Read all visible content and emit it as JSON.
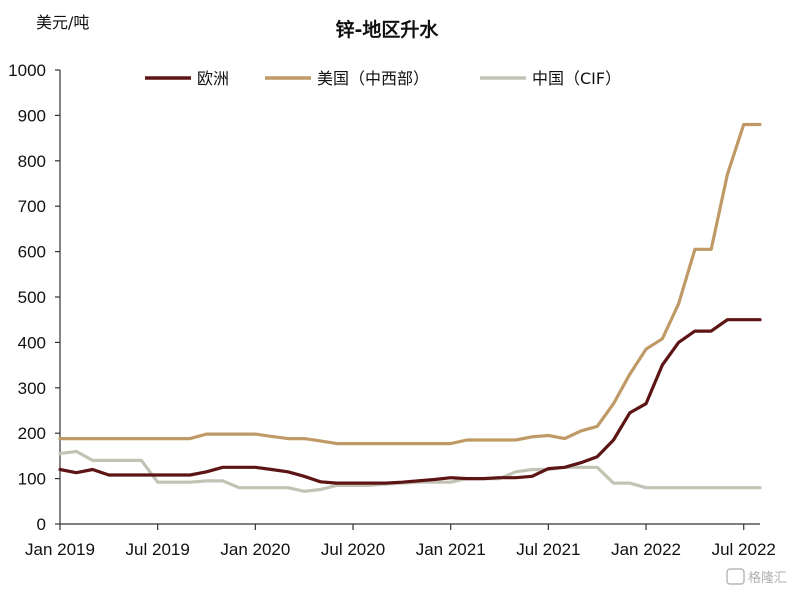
{
  "chart_data": {
    "type": "line",
    "title": "锌-地区升水",
    "ylabel": "美元/吨",
    "xlabel": "",
    "ylim": [
      0,
      1000
    ],
    "yticks": [
      0,
      100,
      200,
      300,
      400,
      500,
      600,
      700,
      800,
      900,
      1000
    ],
    "xlim": [
      "2019-01",
      "2022-08"
    ],
    "xtick_labels": [
      "Jan 2019",
      "Jul 2019",
      "Jan 2020",
      "Jul 2020",
      "Jan 2021",
      "Jul 2021",
      "Jan 2022",
      "Jul 2022"
    ],
    "legend_position": "top",
    "x": [
      "2019-01",
      "2019-02",
      "2019-03",
      "2019-04",
      "2019-05",
      "2019-06",
      "2019-07",
      "2019-08",
      "2019-09",
      "2019-10",
      "2019-11",
      "2019-12",
      "2020-01",
      "2020-02",
      "2020-03",
      "2020-04",
      "2020-05",
      "2020-06",
      "2020-07",
      "2020-08",
      "2020-09",
      "2020-10",
      "2020-11",
      "2020-12",
      "2021-01",
      "2021-02",
      "2021-03",
      "2021-04",
      "2021-05",
      "2021-06",
      "2021-07",
      "2021-08",
      "2021-09",
      "2021-10",
      "2021-11",
      "2021-12",
      "2022-01",
      "2022-02",
      "2022-03",
      "2022-04",
      "2022-05",
      "2022-06",
      "2022-07",
      "2022-08"
    ],
    "series": [
      {
        "name": "欧洲",
        "color": "#5c1414",
        "values": [
          120,
          113,
          120,
          108,
          108,
          108,
          108,
          108,
          108,
          115,
          125,
          125,
          125,
          120,
          115,
          105,
          93,
          90,
          90,
          90,
          90,
          92,
          95,
          98,
          102,
          100,
          100,
          102,
          102,
          105,
          122,
          125,
          135,
          148,
          185,
          245,
          265,
          350,
          400,
          425,
          425,
          450,
          450,
          450
        ]
      },
      {
        "name": "美国（中西部）",
        "color": "#c09a66",
        "values": [
          188,
          188,
          188,
          188,
          188,
          188,
          188,
          188,
          188,
          198,
          198,
          198,
          198,
          193,
          188,
          188,
          183,
          177,
          177,
          177,
          177,
          177,
          177,
          177,
          177,
          185,
          185,
          185,
          185,
          192,
          195,
          188,
          205,
          215,
          265,
          330,
          385,
          408,
          485,
          605,
          605,
          770,
          880,
          880
        ]
      },
      {
        "name": "中国（CIF）",
        "color": "#c3c3b5",
        "values": [
          155,
          160,
          140,
          140,
          140,
          140,
          92,
          92,
          92,
          95,
          95,
          80,
          80,
          80,
          80,
          72,
          76,
          85,
          85,
          85,
          88,
          90,
          92,
          92,
          92,
          100,
          100,
          100,
          115,
          120,
          120,
          125,
          125,
          125,
          90,
          90,
          80,
          80,
          80,
          80,
          80,
          80,
          80,
          80
        ]
      }
    ]
  },
  "watermark": "格隆汇"
}
